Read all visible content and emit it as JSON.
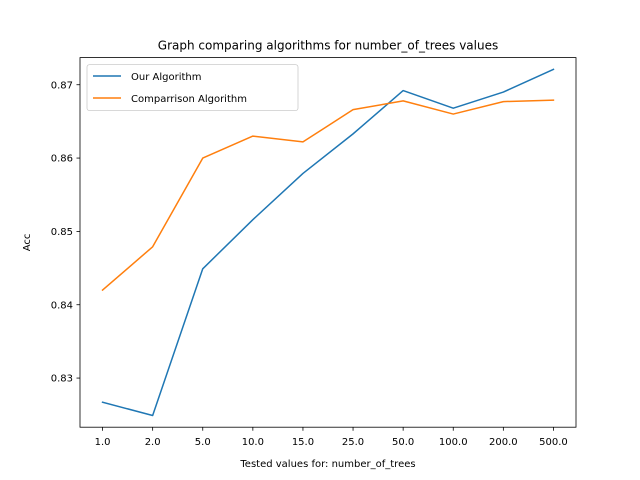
{
  "chart_data": {
    "type": "line",
    "title": "Graph comparing algorithms for number_of_trees values",
    "xlabel": "Tested values for: number_of_trees",
    "ylabel": "Acc",
    "categories": [
      "1.0",
      "2.0",
      "5.0",
      "10.0",
      "15.0",
      "25.0",
      "50.0",
      "100.0",
      "200.0",
      "500.0"
    ],
    "yticks": [
      "0.83",
      "0.84",
      "0.85",
      "0.86",
      "0.87"
    ],
    "ylim": [
      0.8233,
      0.8737
    ],
    "legend_position": "upper-left",
    "grid": false,
    "series": [
      {
        "name": "Our Algorithm",
        "color": "#1f77b4",
        "values": [
          0.8267,
          0.8249,
          0.8449,
          0.8516,
          0.8579,
          0.8633,
          0.8692,
          0.8668,
          0.869,
          0.8721
        ]
      },
      {
        "name": "Comparrison Algorithm",
        "color": "#ff7f0e",
        "values": [
          0.842,
          0.8479,
          0.86,
          0.863,
          0.8622,
          0.8666,
          0.8678,
          0.866,
          0.8677,
          0.8679
        ]
      }
    ]
  }
}
